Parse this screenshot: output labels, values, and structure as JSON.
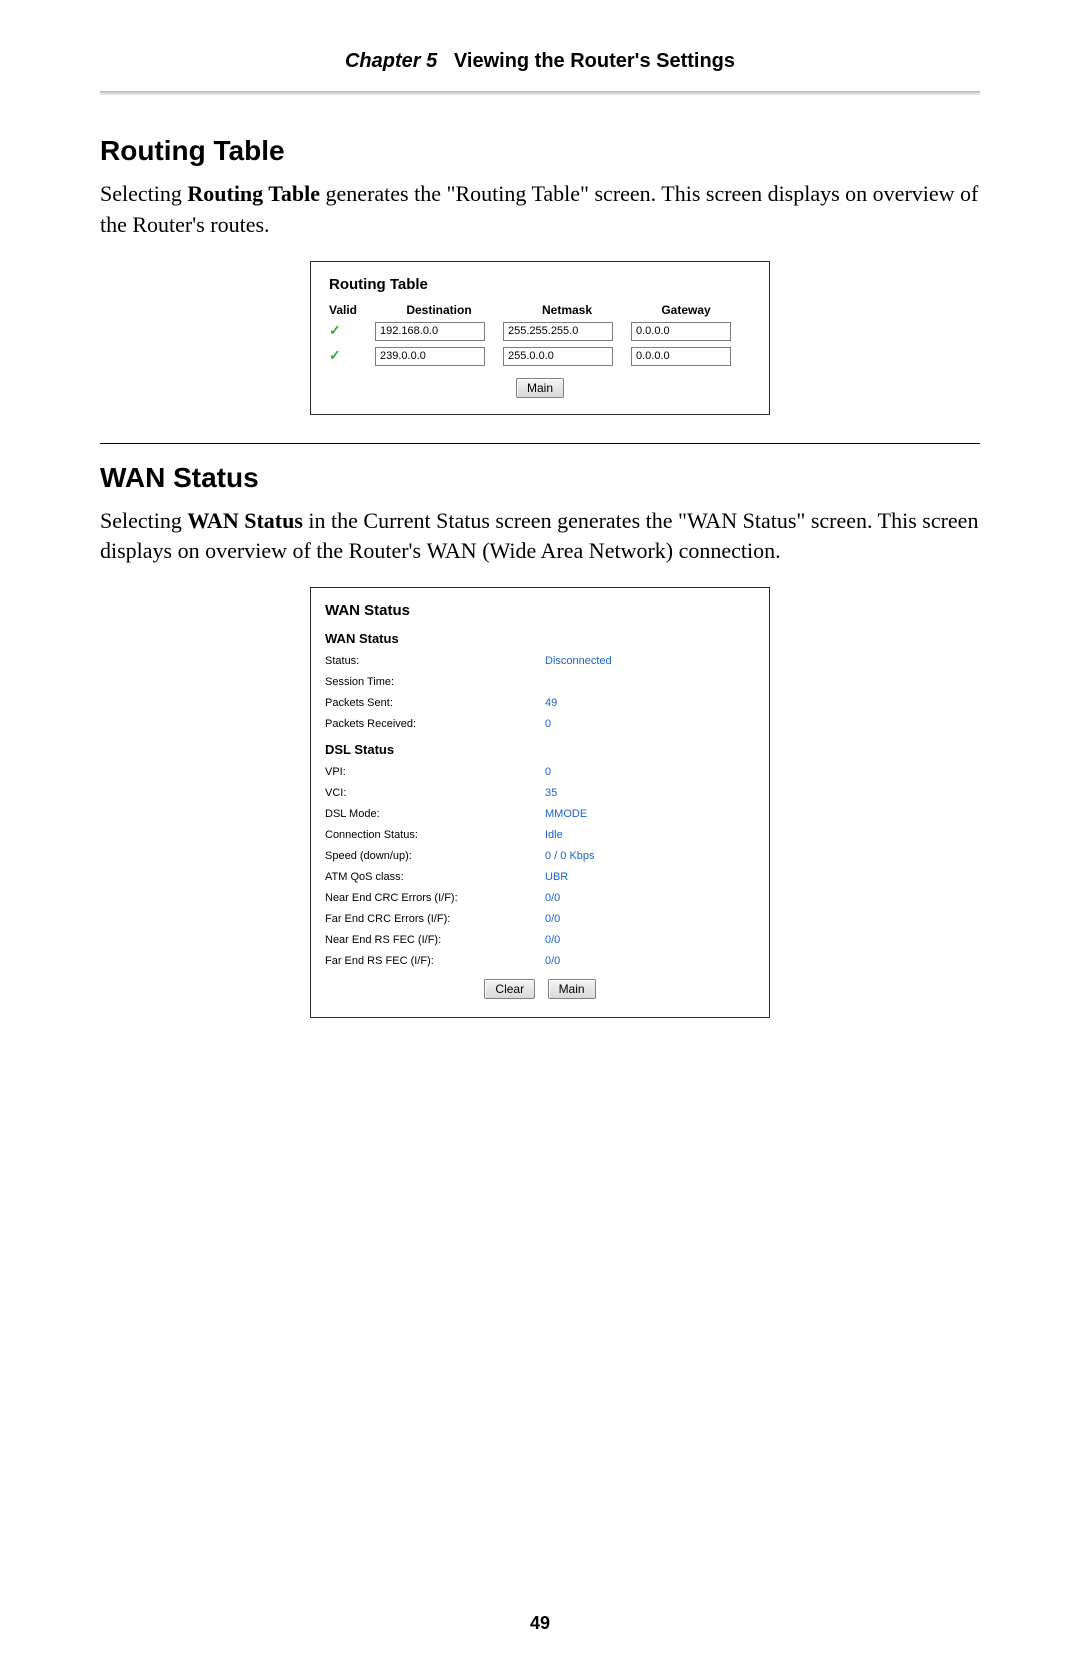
{
  "header": {
    "chapter_label": "Chapter 5",
    "chapter_title": "Viewing the Router's Settings"
  },
  "section_routing": {
    "title": "Routing Table",
    "para_pre": "Selecting ",
    "para_bold": "Routing Table",
    "para_post": " generates the \"Routing Table\" screen. This screen displays on overview of the Router's routes."
  },
  "routing_panel": {
    "title": "Routing Table",
    "columns": {
      "valid": "Valid",
      "destination": "Destination",
      "netmask": "Netmask",
      "gateway": "Gateway"
    },
    "rows": [
      {
        "valid": true,
        "destination": "192.168.0.0",
        "netmask": "255.255.255.0",
        "gateway": "0.0.0.0"
      },
      {
        "valid": true,
        "destination": "239.0.0.0",
        "netmask": "255.0.0.0",
        "gateway": "0.0.0.0"
      }
    ],
    "main_btn": "Main"
  },
  "section_wan": {
    "title": "WAN Status",
    "para_pre": "Selecting ",
    "para_bold": "WAN Status",
    "para_mid": " in the Current Status screen generates the \"",
    "para_sc1": "WAN",
    "para_mid2": " Status\" screen. This screen displays on overview of the Router's ",
    "para_sc2": "WAN",
    "para_post": " (Wide Area Network) connection."
  },
  "wan_panel": {
    "title": "WAN Status",
    "wan_status_heading": "WAN Status",
    "wan_rows": [
      {
        "label": "Status:",
        "value": "Disconnected"
      },
      {
        "label": "Session Time:",
        "value": ""
      },
      {
        "label": "Packets Sent:",
        "value": "49"
      },
      {
        "label": "Packets Received:",
        "value": "0"
      }
    ],
    "dsl_status_heading": "DSL Status",
    "dsl_rows": [
      {
        "label": "VPI:",
        "value": "0"
      },
      {
        "label": "VCI:",
        "value": "35"
      },
      {
        "label": "DSL Mode:",
        "value": "MMODE"
      },
      {
        "label": "Connection Status:",
        "value": "Idle"
      },
      {
        "label": "Speed (down/up):",
        "value": "0 / 0 Kbps"
      },
      {
        "label": "ATM QoS class:",
        "value": "UBR"
      },
      {
        "label": "Near End CRC Errors (I/F):",
        "value": "0/0"
      },
      {
        "label": "Far End CRC Errors (I/F):",
        "value": "0/0"
      },
      {
        "label": "Near End RS FEC (I/F):",
        "value": "0/0"
      },
      {
        "label": "Far End RS FEC (I/F):",
        "value": "0/0"
      }
    ],
    "clear_btn": "Clear",
    "main_btn": "Main"
  },
  "page_number": "49",
  "style": {
    "value_color": "#1a63c8",
    "check_color": "#3aa53a"
  }
}
